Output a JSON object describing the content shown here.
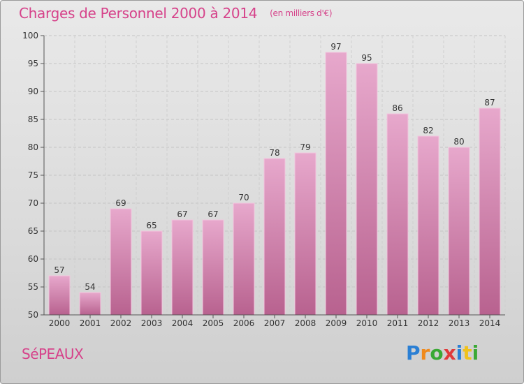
{
  "header": {
    "title": "Charges de Personnel 2000 à 2014",
    "subtitle": "(en milliers d'€)"
  },
  "footer": {
    "commune": "SéPEAUX",
    "logo_letters": [
      {
        "ch": "P",
        "color": "#2a7fd4"
      },
      {
        "ch": "r",
        "color": "#f08a1c"
      },
      {
        "ch": "o",
        "color": "#3aa935"
      },
      {
        "ch": "x",
        "color": "#e03a3a"
      },
      {
        "ch": "i",
        "color": "#2a7fd4"
      },
      {
        "ch": "t",
        "color": "#f0c21c"
      },
      {
        "ch": "i",
        "color": "#3aa935"
      }
    ]
  },
  "chart_data": {
    "type": "bar",
    "title": "Charges de Personnel 2000 à 2014",
    "subtitle": "(en milliers d'€)",
    "categories": [
      "2000",
      "2001",
      "2002",
      "2003",
      "2004",
      "2005",
      "2006",
      "2007",
      "2008",
      "2009",
      "2010",
      "2011",
      "2012",
      "2013",
      "2014"
    ],
    "values": [
      57,
      54,
      69,
      65,
      67,
      67,
      70,
      78,
      79,
      97,
      95,
      86,
      82,
      80,
      87
    ],
    "ylim": [
      50,
      100
    ],
    "yticks": [
      50,
      55,
      60,
      65,
      70,
      75,
      80,
      85,
      90,
      95,
      100
    ],
    "grid": true,
    "bar_color": "#d986b4",
    "accent_color": "#d6428a"
  }
}
